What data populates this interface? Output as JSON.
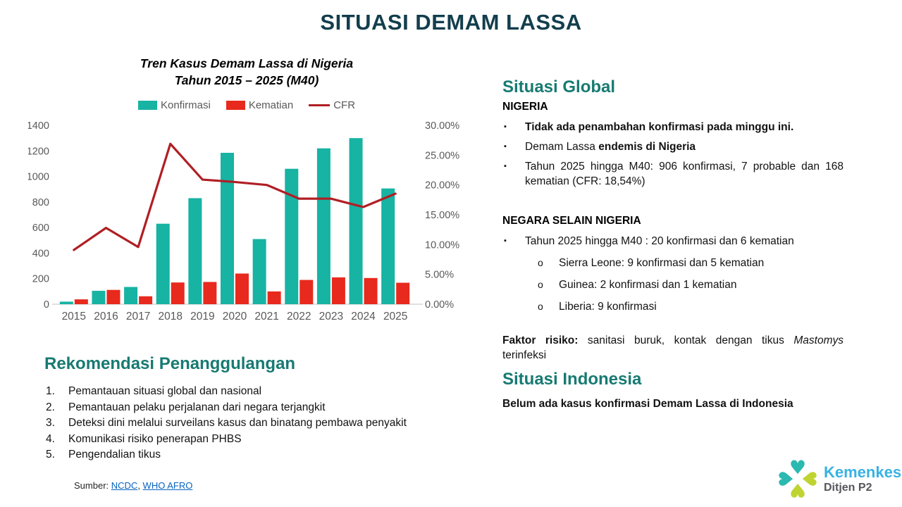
{
  "slide_title": "SITUASI DEMAM LASSA",
  "chart_data": {
    "type": "bar",
    "title_lines": [
      "Tren Kasus Demam Lassa di Nigeria",
      "Tahun 2015 – 2025 (M40)"
    ],
    "categories": [
      "2015",
      "2016",
      "2017",
      "2018",
      "2019",
      "2020",
      "2021",
      "2022",
      "2023",
      "2024",
      "2025"
    ],
    "series": [
      {
        "name": "Konfirmasi",
        "type": "bar",
        "axis": "left",
        "color": "#17B3A3",
        "values": [
          20,
          105,
          135,
          630,
          830,
          1185,
          510,
          1060,
          1220,
          1300,
          906
        ]
      },
      {
        "name": "Kematian",
        "type": "bar",
        "axis": "left",
        "color": "#E8291D",
        "values": [
          38,
          112,
          62,
          170,
          174,
          240,
          100,
          190,
          210,
          205,
          168
        ]
      },
      {
        "name": "CFR",
        "type": "line",
        "axis": "right",
        "color": "#B01F24",
        "values": [
          9.1,
          12.8,
          9.6,
          26.9,
          20.9,
          20.5,
          20.0,
          17.7,
          17.7,
          16.3,
          18.54
        ]
      }
    ],
    "left_axis": {
      "min": 0,
      "max": 1400,
      "step": 200
    },
    "right_axis": {
      "min": 0,
      "max": 30,
      "step": 5,
      "decimals": 2,
      "suffix": "%"
    },
    "grid": false,
    "legend_position": "top"
  },
  "global_section": {
    "heading": "Situasi Global",
    "nigeria_heading": "NIGERIA",
    "nigeria_bullets": [
      {
        "segments": [
          {
            "text": "Tidak ada penambahan konfirmasi pada minggu ini.",
            "bold": true
          }
        ]
      },
      {
        "segments": [
          {
            "text": "Demam Lassa "
          },
          {
            "text": "endemis di Nigeria",
            "bold": true
          }
        ]
      },
      {
        "segments": [
          {
            "text": "Tahun 2025 hingga M40: 906 konfirmasi, 7 probable dan 168 kematian (CFR: 18,54%)"
          }
        ]
      }
    ],
    "other_heading": "NEGARA SELAIN NIGERIA",
    "other_bullets": [
      {
        "segments": [
          {
            "text": "Tahun 2025 hingga M40 : 20 konfirmasi dan 6 kematian"
          }
        ]
      }
    ],
    "other_sub_bullets": [
      "Sierra Leone: 9 konfirmasi dan 5 kematian",
      "Guinea: 2 konfirmasi dan 1 kematian",
      "Liberia: 9 konfirmasi"
    ],
    "risk_factor": {
      "segments": [
        {
          "text": "Faktor risiko:",
          "bold": true
        },
        {
          "text": " sanitasi buruk, kontak dengan tikus "
        },
        {
          "text": "Mastomys",
          "italic": true
        },
        {
          "text": " terinfeksi"
        }
      ]
    }
  },
  "indonesia_section": {
    "heading": "Situasi Indonesia",
    "body": "Belum ada kasus konfirmasi Demam Lassa di Indonesia"
  },
  "recommendations": {
    "heading": "Rekomendasi Penanggulangan",
    "items": [
      "Pemantauan situasi global dan nasional",
      "Pemantauan pelaku perjalanan dari negara terjangkit",
      "Deteksi dini melalui surveilans kasus dan binatang pembawa penyakit",
      "Komunikasi risiko penerapan PHBS",
      "Pengendalian tikus"
    ]
  },
  "source": {
    "label": "Sumber: ",
    "links": [
      "NCDC",
      "WHO AFRO"
    ],
    "separator": ", "
  },
  "logo": {
    "brand": "Kemenkes",
    "unit": "Ditjen P2"
  },
  "colors": {
    "title_teal": "#133E4D",
    "heading_teal": "#177A72",
    "bar_teal": "#17B3A3",
    "bar_red": "#E8291D",
    "cfr_red": "#B01F24",
    "axis_gray": "#595959",
    "link_blue": "#0563C1",
    "logo_blue": "#38B2E3",
    "logo_teal": "#2BB9B0",
    "logo_lime": "#BFD431"
  }
}
